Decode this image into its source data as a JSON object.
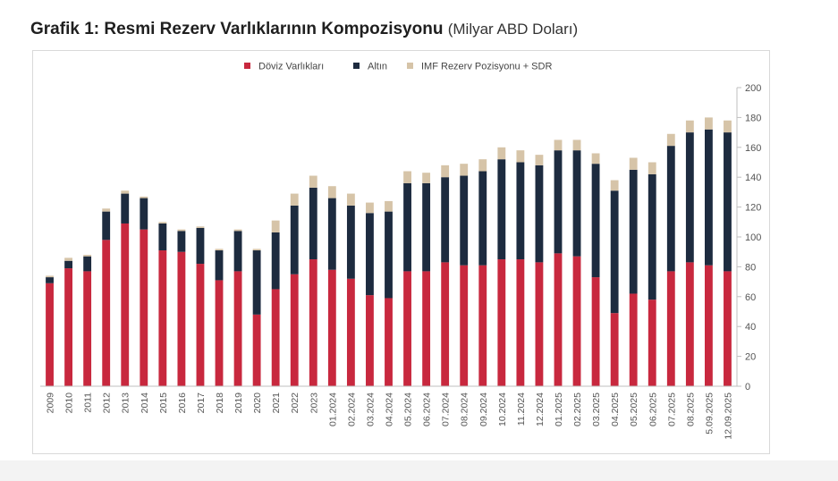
{
  "header": {
    "title_main": "Grafik 1: Resmi Rezerv Varlıklarının Kompozisyonu",
    "title_unit": "(Milyar ABD Doları)"
  },
  "colors": {
    "doviz": "#c8283e",
    "altin": "#1d2b3f",
    "imf": "#d6c4a8",
    "axis": "#bfbfbf",
    "text": "#555555"
  },
  "chart_data": {
    "type": "bar",
    "stacked": true,
    "title": "Grafik 1: Resmi Rezerv Varlıklarının Kompozisyonu",
    "ylabel": "Milyar ABD Doları",
    "xlabel": "",
    "ylim": [
      0,
      200
    ],
    "yticks": [
      0,
      20,
      40,
      60,
      80,
      100,
      120,
      140,
      160,
      180,
      200
    ],
    "y_axis_position": "right",
    "legend_position": "top-center",
    "grid": false,
    "categories": [
      "2009",
      "2010",
      "2011",
      "2012",
      "2013",
      "2014",
      "2015",
      "2016",
      "2017",
      "2018",
      "2019",
      "2020",
      "2021",
      "2022",
      "2023",
      "01.2024",
      "02.2024",
      "03.2024",
      "04.2024",
      "05.2024",
      "06.2024",
      "07.2024",
      "08.2024",
      "09.2024",
      "10.2024",
      "11.2024",
      "12.2024",
      "01.2025",
      "02.2025",
      "03.2025",
      "04.2025",
      "05.2025",
      "06.2025",
      "07.2025",
      "08.2025",
      "5.09.2025",
      "12.09.2025"
    ],
    "series": [
      {
        "name": "Döviz Varlıkları",
        "color_key": "doviz",
        "values": [
          69,
          79,
          77,
          98,
          109,
          105,
          91,
          90,
          82,
          71,
          77,
          48,
          65,
          75,
          85,
          78,
          72,
          61,
          59,
          77,
          77,
          83,
          81,
          81,
          85,
          85,
          83,
          89,
          87,
          73,
          49,
          62,
          58,
          77,
          83,
          81,
          77
        ]
      },
      {
        "name": "Altın",
        "color_key": "altin",
        "values": [
          4,
          5,
          10,
          19,
          20,
          21,
          18,
          14,
          24,
          20,
          27,
          43,
          38,
          46,
          48,
          48,
          49,
          55,
          58,
          59,
          59,
          57,
          60,
          63,
          67,
          65,
          65,
          69,
          71,
          76,
          82,
          83,
          84,
          84,
          87,
          91,
          93
        ]
      },
      {
        "name": "IMF Rezerv Pozisyonu + SDR",
        "color_key": "imf",
        "values": [
          1,
          2,
          1,
          2,
          2,
          1,
          1,
          1,
          1,
          1,
          1,
          1,
          8,
          8,
          8,
          8,
          8,
          7,
          7,
          8,
          7,
          8,
          8,
          8,
          8,
          8,
          7,
          7,
          7,
          7,
          7,
          8,
          8,
          8,
          8,
          8,
          8
        ]
      }
    ]
  }
}
